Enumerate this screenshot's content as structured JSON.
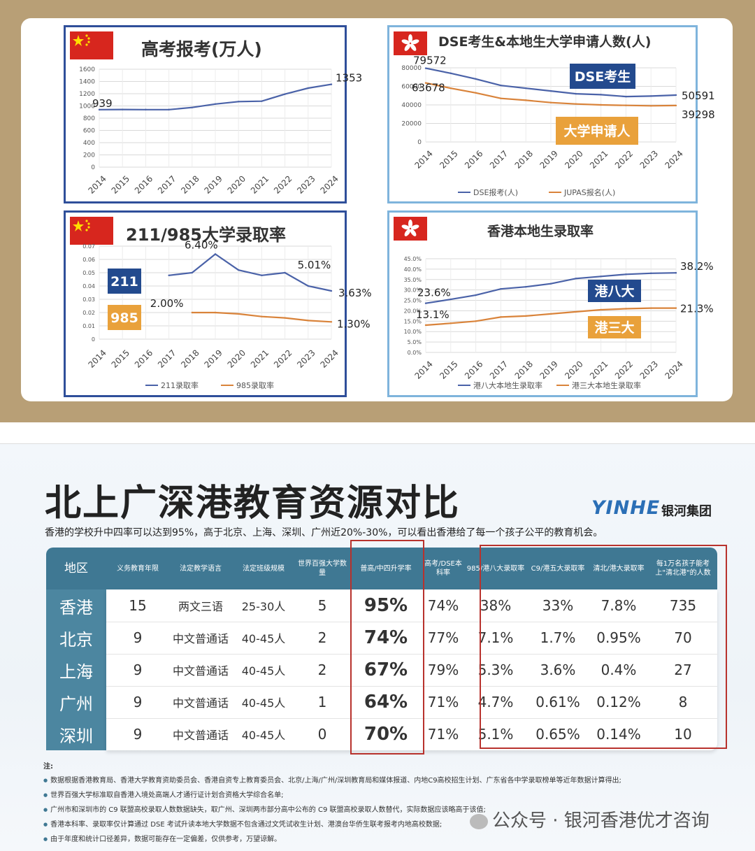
{
  "chart_data": [
    {
      "type": "line",
      "title": "高考报考(万人)",
      "region_flag": "china",
      "x": [
        "2014",
        "2015",
        "2016",
        "2017",
        "2018",
        "2019",
        "2020",
        "2021",
        "2022",
        "2023",
        "2024"
      ],
      "series": [
        {
          "values": [
            939,
            942,
            940,
            940,
            975,
            1031,
            1071,
            1078,
            1193,
            1291,
            1353
          ]
        }
      ],
      "annotations": [
        "939",
        "1353"
      ],
      "ylim": [
        0,
        1600
      ],
      "yticks": [
        "0",
        "200",
        "400",
        "600",
        "800",
        "1000",
        "1200",
        "1400",
        "1600"
      ],
      "grid": true,
      "colors": [
        "#4a62a8"
      ]
    },
    {
      "type": "line",
      "title": "DSE考生&本地生大学申请人数(人)",
      "region_flag": "hong-kong",
      "x": [
        "2014",
        "2015",
        "2016",
        "2017",
        "2018",
        "2019",
        "2020",
        "2021",
        "2022",
        "2023",
        "2024"
      ],
      "series": [
        {
          "name": "DSE报考(人)",
          "values": [
            79572,
            74131,
            68000,
            61000,
            58000,
            55000,
            52000,
            51000,
            49000,
            49500,
            50591
          ]
        },
        {
          "name": "JUPAS报名(人)",
          "values": [
            63678,
            58000,
            53000,
            47000,
            45000,
            42500,
            41000,
            40000,
            39500,
            39000,
            39298
          ]
        }
      ],
      "annotations": [
        "79572",
        "63678",
        "50591",
        "39298"
      ],
      "callouts": [
        "DSE考生",
        "大学申请人"
      ],
      "ylim": [
        0,
        80000
      ],
      "yticks": [
        "0",
        "20000",
        "40000",
        "60000",
        "80000"
      ],
      "legend": "bottom",
      "grid": true,
      "colors": [
        "#4a62a8",
        "#d9833a"
      ]
    },
    {
      "type": "line",
      "title": "211/985大学录取率",
      "region_flag": "china",
      "x": [
        "2014",
        "2015",
        "2016",
        "2017",
        "2018",
        "2019",
        "2020",
        "2021",
        "2022",
        "2023",
        "2024"
      ],
      "series": [
        {
          "name": "211录取率",
          "values": [
            null,
            null,
            null,
            0.048,
            0.05,
            0.064,
            0.052,
            0.048,
            0.05,
            0.04,
            0.0363
          ]
        },
        {
          "name": "985录取率",
          "values": [
            null,
            null,
            null,
            null,
            0.02,
            0.02,
            0.019,
            0.017,
            0.016,
            0.014,
            0.013
          ]
        }
      ],
      "annotations": [
        "6.40%",
        "5.01%",
        "3.63%",
        "2.00%",
        "1.30%"
      ],
      "callouts": [
        "211",
        "985"
      ],
      "ylim": [
        0,
        0.07
      ],
      "yticks": [
        "0",
        "0.01",
        "0.02",
        "0.03",
        "0.04",
        "0.05",
        "0.06",
        "0.07"
      ],
      "legend": "bottom",
      "grid": true,
      "colors": [
        "#4a62a8",
        "#d9833a"
      ]
    },
    {
      "type": "line",
      "title": "香港本地生录取率",
      "region_flag": "hong-kong",
      "x": [
        "2014",
        "2015",
        "2016",
        "2017",
        "2018",
        "2019",
        "2020",
        "2021",
        "2022",
        "2023",
        "2024"
      ],
      "series": [
        {
          "name": "港八大本地生录取率",
          "values": [
            0.236,
            0.255,
            0.275,
            0.305,
            0.315,
            0.33,
            0.355,
            0.365,
            0.375,
            0.38,
            0.382
          ]
        },
        {
          "name": "港三大本地生录取率",
          "values": [
            0.131,
            0.14,
            0.15,
            0.17,
            0.175,
            0.185,
            0.195,
            0.205,
            0.21,
            0.213,
            0.213
          ]
        }
      ],
      "annotations": [
        "23.6%",
        "38.2%",
        "13.1%",
        "21.3%"
      ],
      "callouts": [
        "港八大",
        "港三大"
      ],
      "ylim": [
        0,
        0.45
      ],
      "yticks": [
        "0.0%",
        "5.0%",
        "10.0%",
        "15.0%",
        "20.0%",
        "25.0%",
        "30.0%",
        "35.0%",
        "40.0%",
        "45.0%"
      ],
      "legend": "bottom",
      "grid": true,
      "colors": [
        "#4a62a8",
        "#d9833a"
      ]
    },
    {
      "type": "table",
      "title": "北上广深港教育资源对比",
      "subtitle": "香港的学校升中四率可以达到95%，高于北京、上海、深圳、广州近20%-30%，可以看出香港给了每一个孩子公平的教育机会。",
      "columns": [
        "地区",
        "义务教育年限",
        "法定教学语言",
        "法定班级规模",
        "世界百强大学数量",
        "普高/中四升学率",
        "高考/DSE本科率",
        "985/港八大录取率",
        "C9/港五大录取率",
        "清北/港大录取率",
        "每1万名孩子能考上\"清北港\"的人数"
      ],
      "rows": [
        [
          "香港",
          "15",
          "两文三语",
          "25-30人",
          "5",
          "95%",
          "74%",
          "38%",
          "33%",
          "7.8%",
          "735"
        ],
        [
          "北京",
          "9",
          "中文普通话",
          "40-45人",
          "2",
          "74%",
          "77%",
          "7.1%",
          "1.7%",
          "0.95%",
          "70"
        ],
        [
          "上海",
          "9",
          "中文普通话",
          "40-45人",
          "2",
          "67%",
          "79%",
          "5.3%",
          "3.6%",
          "0.4%",
          "27"
        ],
        [
          "广州",
          "9",
          "中文普通话",
          "40-45人",
          "1",
          "64%",
          "71%",
          "4.7%",
          "0.61%",
          "0.12%",
          "8"
        ],
        [
          "深圳",
          "9",
          "中文普通话",
          "40-45人",
          "0",
          "70%",
          "71%",
          "5.1%",
          "0.65%",
          "0.14%",
          "10"
        ]
      ],
      "highlight_colors": {
        "header": "#3f7893",
        "region": "#4c86a0",
        "redbox": "#b8322d"
      }
    }
  ],
  "brand": {
    "logo": "YINHE",
    "name": "银河集团"
  },
  "notes": {
    "title": "注:",
    "items": [
      "数据根据香港教育局、香港大学教育资助委员会、香港自资专上教育委员会、北京/上海/广州/深圳教育局和媒体报道、内地C9高校招生计划、广东省各中学录取榜单等近年数据计算得出;",
      "世界百强大学标准取自香港入境处高端人才通行证计划合资格大学综合名单;",
      "广州市和深圳市的 C9 联盟高校录取人数数据缺失，取广州、深圳两市部分高中公布的 C9 联盟高校录取人数替代，实际数据应该略高于该值;",
      "香港本科率、录取率仅计算通过 DSE 考试升读本地大学数据不包含通过文凭试收生计划、港澳台华侨生联考报考内地高校数据;",
      "由于年度和统计口径差异，数据可能存在一定偏差，仅供参考，万望谅解。"
    ]
  },
  "wechat": "公众号 · 银河香港优才咨询"
}
